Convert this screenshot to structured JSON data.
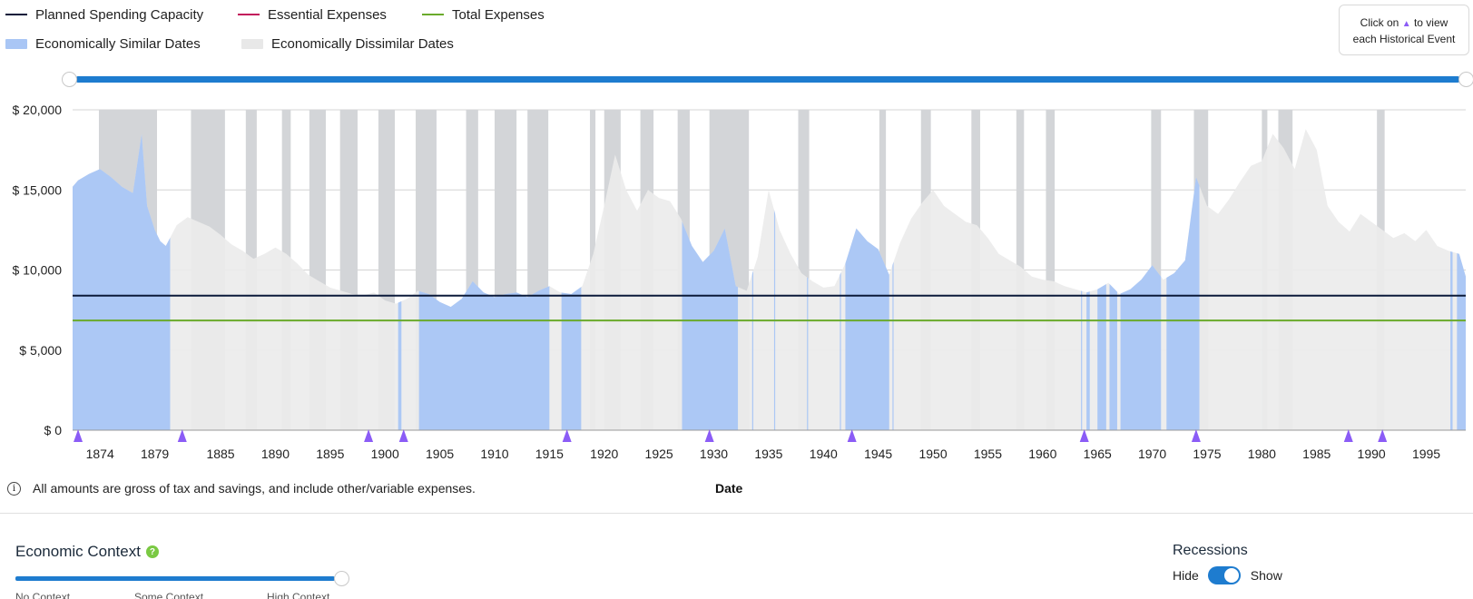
{
  "legend": {
    "planned": {
      "label": "Planned Spending Capacity",
      "color": "#0b1a3a"
    },
    "essential": {
      "label": "Essential Expenses",
      "color": "#c2185b"
    },
    "total": {
      "label": "Total Expenses",
      "color": "#6aaa2b"
    },
    "similar": {
      "label": "Economically Similar Dates",
      "color": "#a9c6f5"
    },
    "dissimilar": {
      "label": "Economically Dissimilar Dates",
      "color": "#ececec"
    }
  },
  "hint": {
    "line1": "Click on",
    "line1b": "to view",
    "line2": "each Historical Event",
    "icon": "purple-triangle-icon"
  },
  "note": {
    "text": "All amounts are gross of tax and savings, and include other/variable expenses.",
    "icon": "info-icon"
  },
  "economic_context": {
    "title": "Economic Context",
    "help_icon": "question-icon",
    "labels": [
      "No Context",
      "Some Context",
      "High Context"
    ],
    "value_fraction": 1.0
  },
  "recessions": {
    "title": "Recessions",
    "off_label": "Hide",
    "on_label": "Show",
    "enabled": true
  },
  "chart_data": {
    "type": "area",
    "xlabel": "Date",
    "ylabel": "",
    "y_tick_labels": [
      "$ 0",
      "$ 5,000",
      "$ 10,000",
      "$ 15,000",
      "$ 20,000"
    ],
    "y_ticks": [
      0,
      5000,
      10000,
      15000,
      20000
    ],
    "ylim": [
      0,
      20000
    ],
    "xlim": [
      1871.5,
      1998.6
    ],
    "x_ticks": [
      1874,
      1879,
      1885,
      1890,
      1895,
      1900,
      1905,
      1910,
      1915,
      1920,
      1925,
      1930,
      1935,
      1940,
      1945,
      1950,
      1955,
      1960,
      1965,
      1970,
      1975,
      1980,
      1985,
      1990,
      1995
    ],
    "x_tick_labels": [
      "1874",
      "1879",
      "1885",
      "1890",
      "1895",
      "1900",
      "1905",
      "1910",
      "1915",
      "1920",
      "1925",
      "1930",
      "1935",
      "1940",
      "1945",
      "1950",
      "1955",
      "1960",
      "1965",
      "1970",
      "1975",
      "1980",
      "1985",
      "1990",
      "1995"
    ],
    "planned_spending_capacity": 8400,
    "total_expenses": 6850,
    "series": [
      {
        "name": "Spending",
        "x": [
          1871.5,
          1872,
          1873,
          1874,
          1875,
          1876,
          1877,
          1877.8,
          1878.3,
          1879,
          1879.5,
          1880,
          1881,
          1882,
          1883,
          1884,
          1885,
          1886,
          1887,
          1888,
          1889,
          1890,
          1891,
          1892,
          1893,
          1894,
          1895,
          1896,
          1897,
          1898,
          1899,
          1900,
          1901,
          1902,
          1903,
          1904,
          1905,
          1906,
          1907,
          1908,
          1909,
          1910,
          1911,
          1912,
          1913,
          1914,
          1915,
          1916,
          1917,
          1918,
          1919,
          1920,
          1921,
          1922,
          1923,
          1924,
          1925,
          1926,
          1927,
          1928,
          1929,
          1930,
          1931,
          1932,
          1933,
          1934,
          1935,
          1936,
          1937,
          1938,
          1939,
          1940,
          1941,
          1942,
          1943,
          1944,
          1945,
          1946,
          1947,
          1948,
          1949,
          1950,
          1951,
          1952,
          1953,
          1954,
          1955,
          1956,
          1957,
          1958,
          1959,
          1960,
          1961,
          1962,
          1963,
          1964,
          1965,
          1966,
          1967,
          1968,
          1969,
          1970,
          1971,
          1972,
          1973,
          1974,
          1975,
          1976,
          1977,
          1978,
          1979,
          1980,
          1981,
          1982,
          1983,
          1984,
          1985,
          1986,
          1987,
          1988,
          1989,
          1990,
          1991,
          1992,
          1993,
          1994,
          1995,
          1996,
          1997,
          1998,
          1998.6
        ],
        "values": [
          15200,
          15600,
          16000,
          16300,
          15800,
          15200,
          14800,
          18500,
          14000,
          12500,
          11800,
          11500,
          12800,
          13300,
          13000,
          12700,
          12200,
          11600,
          11200,
          10700,
          11000,
          11400,
          11000,
          10400,
          9700,
          9300,
          8900,
          8700,
          8500,
          8400,
          8600,
          8100,
          7900,
          8200,
          8700,
          8500,
          8000,
          7700,
          8200,
          9300,
          8600,
          8300,
          8500,
          8600,
          8300,
          8700,
          9000,
          8600,
          8500,
          9000,
          11000,
          14000,
          17200,
          15000,
          13700,
          15000,
          14500,
          14300,
          13200,
          11500,
          10500,
          11200,
          12600,
          9000,
          8700,
          10800,
          15000,
          12500,
          11000,
          9800,
          9300,
          8900,
          9000,
          10400,
          12600,
          11800,
          11300,
          9700,
          11700,
          13200,
          14200,
          15000,
          14000,
          13500,
          13000,
          12800,
          12000,
          11000,
          10600,
          10200,
          9600,
          9400,
          9300,
          9000,
          8800,
          8600,
          8800,
          9200,
          8500,
          8800,
          9400,
          10300,
          9400,
          9800,
          10600,
          15800,
          14000,
          13500,
          14400,
          15500,
          16500,
          16800,
          18500,
          17600,
          16300,
          18800,
          17500,
          14000,
          13000,
          12400,
          13500,
          13000,
          12500,
          12000,
          12300,
          11800,
          12500,
          11500,
          11200,
          11000,
          9600
        ]
      }
    ],
    "similar_date_ranges": [
      [
        1871.5,
        1880.4
      ],
      [
        1901.2,
        1901.5
      ],
      [
        1903.1,
        1915.0
      ],
      [
        1916.1,
        1917.9
      ],
      [
        1927.1,
        1932.2
      ],
      [
        1933.5,
        1933.6
      ],
      [
        1935.5,
        1935.6
      ],
      [
        1938.5,
        1938.6
      ],
      [
        1941.5,
        1941.6
      ],
      [
        1942.0,
        1946.0
      ],
      [
        1946.3,
        1946.4
      ],
      [
        1963.5,
        1963.6
      ],
      [
        1964.0,
        1964.3
      ],
      [
        1965.0,
        1965.8
      ],
      [
        1966.1,
        1966.8
      ],
      [
        1967.1,
        1970.8
      ],
      [
        1971.3,
        1974.3
      ],
      [
        1997.2,
        1997.4
      ],
      [
        1997.8,
        1998.6
      ]
    ],
    "recession_ranges": [
      [
        1873.9,
        1879.2
      ],
      [
        1882.3,
        1885.4
      ],
      [
        1887.3,
        1888.3
      ],
      [
        1890.6,
        1891.4
      ],
      [
        1893.1,
        1894.6
      ],
      [
        1895.9,
        1897.5
      ],
      [
        1899.4,
        1900.9
      ],
      [
        1902.8,
        1904.7
      ],
      [
        1907.4,
        1908.5
      ],
      [
        1910.0,
        1912.0
      ],
      [
        1913.0,
        1914.9
      ],
      [
        1918.7,
        1919.2
      ],
      [
        1920.0,
        1921.5
      ],
      [
        1923.3,
        1924.5
      ],
      [
        1926.7,
        1927.8
      ],
      [
        1929.6,
        1933.2
      ],
      [
        1937.7,
        1938.7
      ],
      [
        1945.1,
        1945.7
      ],
      [
        1948.9,
        1949.8
      ],
      [
        1953.5,
        1954.3
      ],
      [
        1957.6,
        1958.3
      ],
      [
        1960.3,
        1961.1
      ],
      [
        1969.9,
        1970.8
      ],
      [
        1973.8,
        1975.1
      ],
      [
        1980.0,
        1980.5
      ],
      [
        1981.5,
        1982.8
      ],
      [
        1990.5,
        1991.2
      ]
    ],
    "event_markers": [
      1872.0,
      1881.5,
      1898.5,
      1901.7,
      1916.6,
      1929.6,
      1942.6,
      1963.8,
      1974.0,
      1987.9,
      1991.0
    ],
    "grid": true,
    "legend_position": "top-left"
  }
}
